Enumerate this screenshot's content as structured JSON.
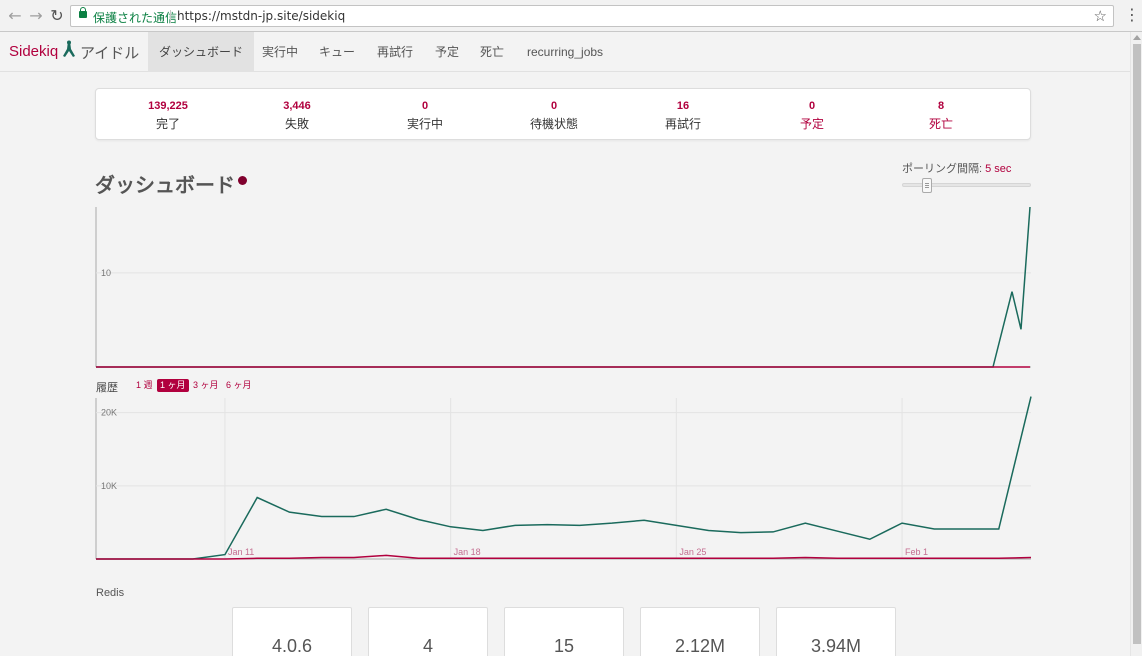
{
  "browser": {
    "back_icon": "arrow-left-icon",
    "forward_icon": "arrow-right-icon",
    "reload_icon": "reload-icon",
    "secure_text": "保護された通信",
    "url": "https://mstdn-jp.site/sidekiq",
    "star_icon": "star-icon",
    "menu_icon": "more-vert-icon"
  },
  "navbar": {
    "brand": "Sidekiq",
    "env_label": "アイドル",
    "tabs": [
      {
        "label": "ダッシュボード",
        "active": true
      },
      {
        "label": "実行中",
        "active": false
      },
      {
        "label": "キュー",
        "active": false
      },
      {
        "label": "再試行",
        "active": false
      },
      {
        "label": "予定",
        "active": false
      },
      {
        "label": "死亡",
        "active": false
      },
      {
        "label": "recurring_jobs",
        "active": false
      }
    ]
  },
  "summary": [
    {
      "count": "139,225",
      "label": "完了"
    },
    {
      "count": "3,446",
      "label": "失敗"
    },
    {
      "count": "0",
      "label": "実行中"
    },
    {
      "count": "0",
      "label": "待機状態"
    },
    {
      "count": "16",
      "label": "再試行"
    },
    {
      "count": "0",
      "label": "予定"
    },
    {
      "count": "8",
      "label": "死亡"
    }
  ],
  "dashboard": {
    "title": "ダッシュボード",
    "poll_label": "ポーリング間隔:",
    "poll_value": "5 sec"
  },
  "history": {
    "label": "履歴",
    "ranges": [
      {
        "label": "1 週",
        "active": false
      },
      {
        "label": "1 ヶ月",
        "active": true
      },
      {
        "label": "3 ヶ月",
        "active": false
      },
      {
        "label": "6 ヶ月",
        "active": false
      }
    ]
  },
  "redis": {
    "title": "Redis",
    "values": [
      "4.0.6",
      "4",
      "15",
      "2.12M",
      "3.94M"
    ]
  },
  "colors": {
    "processed": "#1a6a5c",
    "failed": "#b1003e",
    "accent": "#b1003e"
  },
  "chart_data": [
    {
      "type": "line",
      "ytick": 10,
      "ylim": [
        0,
        17
      ],
      "series": [
        {
          "color": "#1a6a5c",
          "values": [
            0,
            8,
            4,
            17
          ]
        },
        {
          "color": "#b1003e",
          "values": [
            0,
            0,
            0,
            0
          ]
        }
      ]
    },
    {
      "type": "line",
      "xtick_labels": [
        "Jan 11",
        "Jan 18",
        "Jan 25",
        "Feb 1"
      ],
      "xtick_index": [
        4,
        11,
        18,
        25
      ],
      "yticks": [
        10000,
        20000
      ],
      "ytick_labels": [
        "10K",
        "20K"
      ],
      "ylim": [
        0,
        22000
      ],
      "series": [
        {
          "color": "#1a6a5c",
          "values": [
            0,
            0,
            0,
            0,
            600,
            8400,
            6400,
            5800,
            5800,
            6800,
            5400,
            4400,
            3900,
            4600,
            4700,
            4600,
            4900,
            5300,
            4600,
            3900,
            3600,
            3700,
            4900,
            3800,
            2700,
            4900,
            4100,
            4100,
            4100,
            22200
          ]
        },
        {
          "color": "#b1003e",
          "values": [
            0,
            0,
            0,
            0,
            0,
            100,
            100,
            200,
            200,
            500,
            100,
            100,
            100,
            100,
            100,
            100,
            100,
            100,
            100,
            100,
            100,
            100,
            200,
            100,
            100,
            100,
            100,
            100,
            100,
            200
          ]
        }
      ]
    }
  ]
}
